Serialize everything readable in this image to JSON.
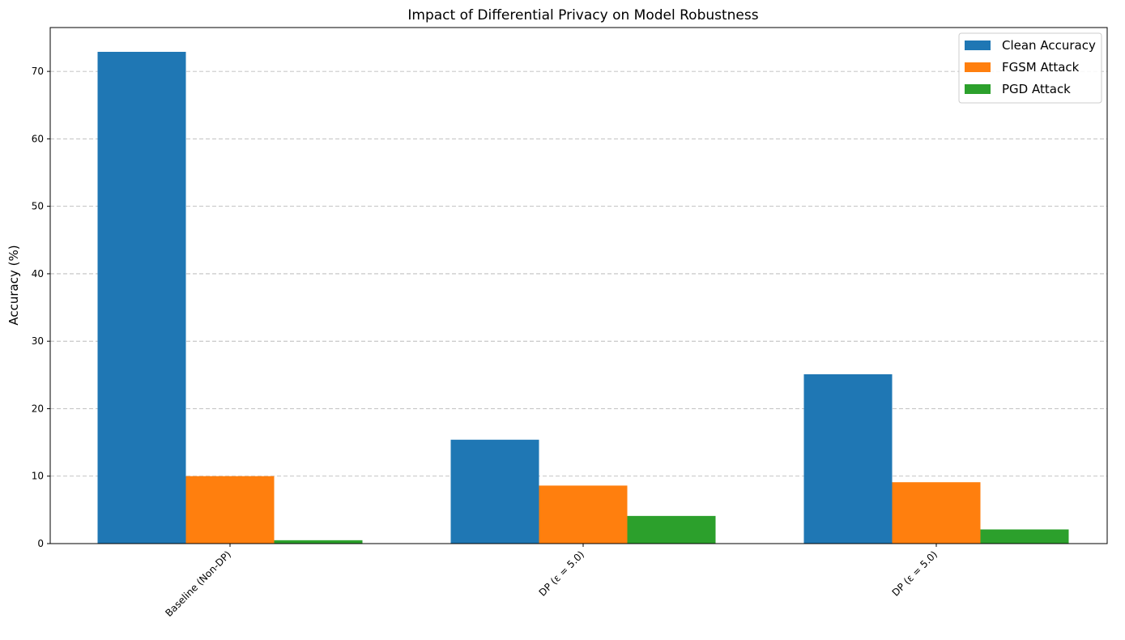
{
  "chart_data": {
    "type": "bar",
    "title": "Impact of Differential Privacy on Model Robustness",
    "xlabel": "",
    "ylabel": "Accuracy (%)",
    "categories": [
      "Baseline (Non-DP)",
      "DP (ε = 5.0)",
      "DP (ε = 5.0)"
    ],
    "series": [
      {
        "name": "Clean Accuracy",
        "color": "#1f77b4",
        "values": [
          72.9,
          15.4,
          25.1
        ]
      },
      {
        "name": "FGSM Attack",
        "color": "#ff7f0e",
        "values": [
          10.0,
          8.6,
          9.1
        ]
      },
      {
        "name": "PGD Attack",
        "color": "#2ca02c",
        "values": [
          0.5,
          4.1,
          2.1
        ]
      }
    ],
    "ylim": [
      0,
      76.5
    ],
    "yticks": [
      0,
      10,
      20,
      30,
      40,
      50,
      60,
      70
    ],
    "grid": "y-dashed",
    "legend": "top-right"
  }
}
